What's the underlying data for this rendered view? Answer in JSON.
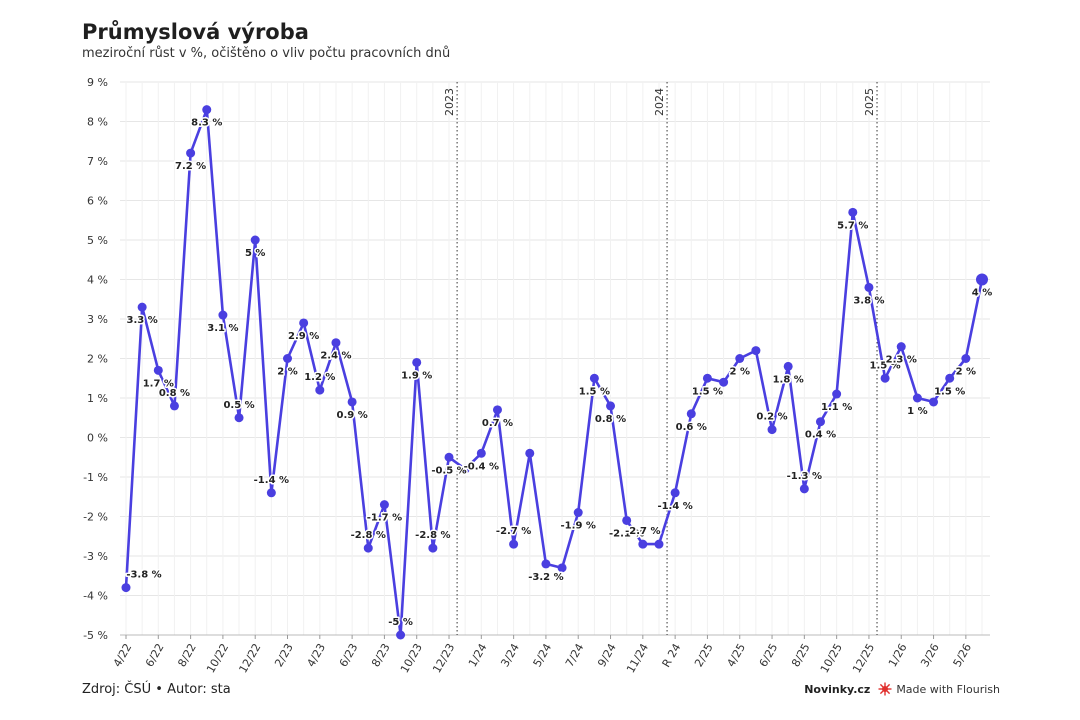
{
  "header": {
    "title": "Průmyslová výroba",
    "subtitle": "meziroční růst v %, očištěno o vliv počtu pracovních dnů"
  },
  "footer": {
    "source": "Zdroj: ČSÚ • Autor: sta",
    "brand": "Novinky.cz",
    "made_with": "Made with Flourish"
  },
  "colors": {
    "line": "#4a3fe0",
    "point": "#4a3fe0",
    "grid": "#e6e6e6"
  },
  "chart_data": {
    "type": "line",
    "title": "Průmyslová výroba",
    "subtitle": "meziroční růst v %, očištěno o vliv počtu pracovních dnů",
    "ylim": [
      -5,
      9
    ],
    "y_ticks": [
      "9 %",
      "8 %",
      "7 %",
      "6 %",
      "5 %",
      "4 %",
      "3 %",
      "2 %",
      "1 %",
      "0 %",
      "-1 %",
      "-2 %",
      "-3 %",
      "-4 %",
      "-5 %"
    ],
    "x_tick_labels": [
      "4/22",
      "6/22",
      "8/22",
      "10/22",
      "12/22",
      "2/23",
      "4/23",
      "6/23",
      "8/23",
      "10/23",
      "12/23",
      "1/24",
      "3/24",
      "5/24",
      "7/24",
      "9/24",
      "11/24",
      "R 24",
      "2/25",
      "4/25",
      "6/25",
      "8/25",
      "10/25",
      "12/25",
      "1/26",
      "3/26",
      "5/26"
    ],
    "year_markers": [
      "2023",
      "2024",
      "2025"
    ],
    "grid": true,
    "series": [
      {
        "values": [
          -3.8,
          3.3,
          1.7,
          0.8,
          7.2,
          8.3,
          3.1,
          0.5,
          5.0,
          -1.4,
          2.0,
          2.9,
          1.2,
          2.4,
          0.9,
          -2.8,
          -1.7,
          -5.0,
          1.9,
          -2.8,
          -0.5,
          -0.8,
          -0.4,
          0.7,
          -2.7,
          -0.4,
          -3.2,
          -3.3,
          -1.9,
          1.5,
          0.8,
          -2.1,
          -2.7,
          -2.7,
          -1.4,
          0.6,
          1.5,
          1.4,
          2.0,
          2.2,
          0.2,
          1.8,
          -1.3,
          0.4,
          1.1,
          5.7,
          3.8,
          1.5,
          2.3,
          1.0,
          0.9,
          1.5,
          2.0,
          4.0
        ],
        "data_labels": [
          "-3.8 %",
          "3.3 %",
          "1.7 %",
          "0.8 %",
          "7.2 %",
          "8.3 %",
          "3.1 %",
          "0.5 %",
          "5 %",
          "-1.4 %",
          "2 %",
          "2.9 %",
          "1.2 %",
          "2.4 %",
          "0.9 %",
          "-2.8 %",
          "-1.7 %",
          "-5 %",
          "1.9 %",
          "-2.8 %",
          "-0.5 %",
          "",
          "-0.4 %",
          "0.7 %",
          "-2.7 %",
          "",
          "-3.2 %",
          "",
          "-1.9 %",
          "1.5 %",
          "0.8 %",
          "-2.1 %",
          "-2.7 %",
          "",
          "-1.4 %",
          "0.6 %",
          "1.5 %",
          "",
          "2 %",
          "",
          "0.2 %",
          "1.8 %",
          "-1.3 %",
          "0.4 %",
          "1.1 %",
          "5.7 %",
          "3.8 %",
          "1.5 %",
          "2.3 %",
          "1 %",
          "",
          "1.5 %",
          "2 %",
          "4 %"
        ]
      }
    ]
  }
}
